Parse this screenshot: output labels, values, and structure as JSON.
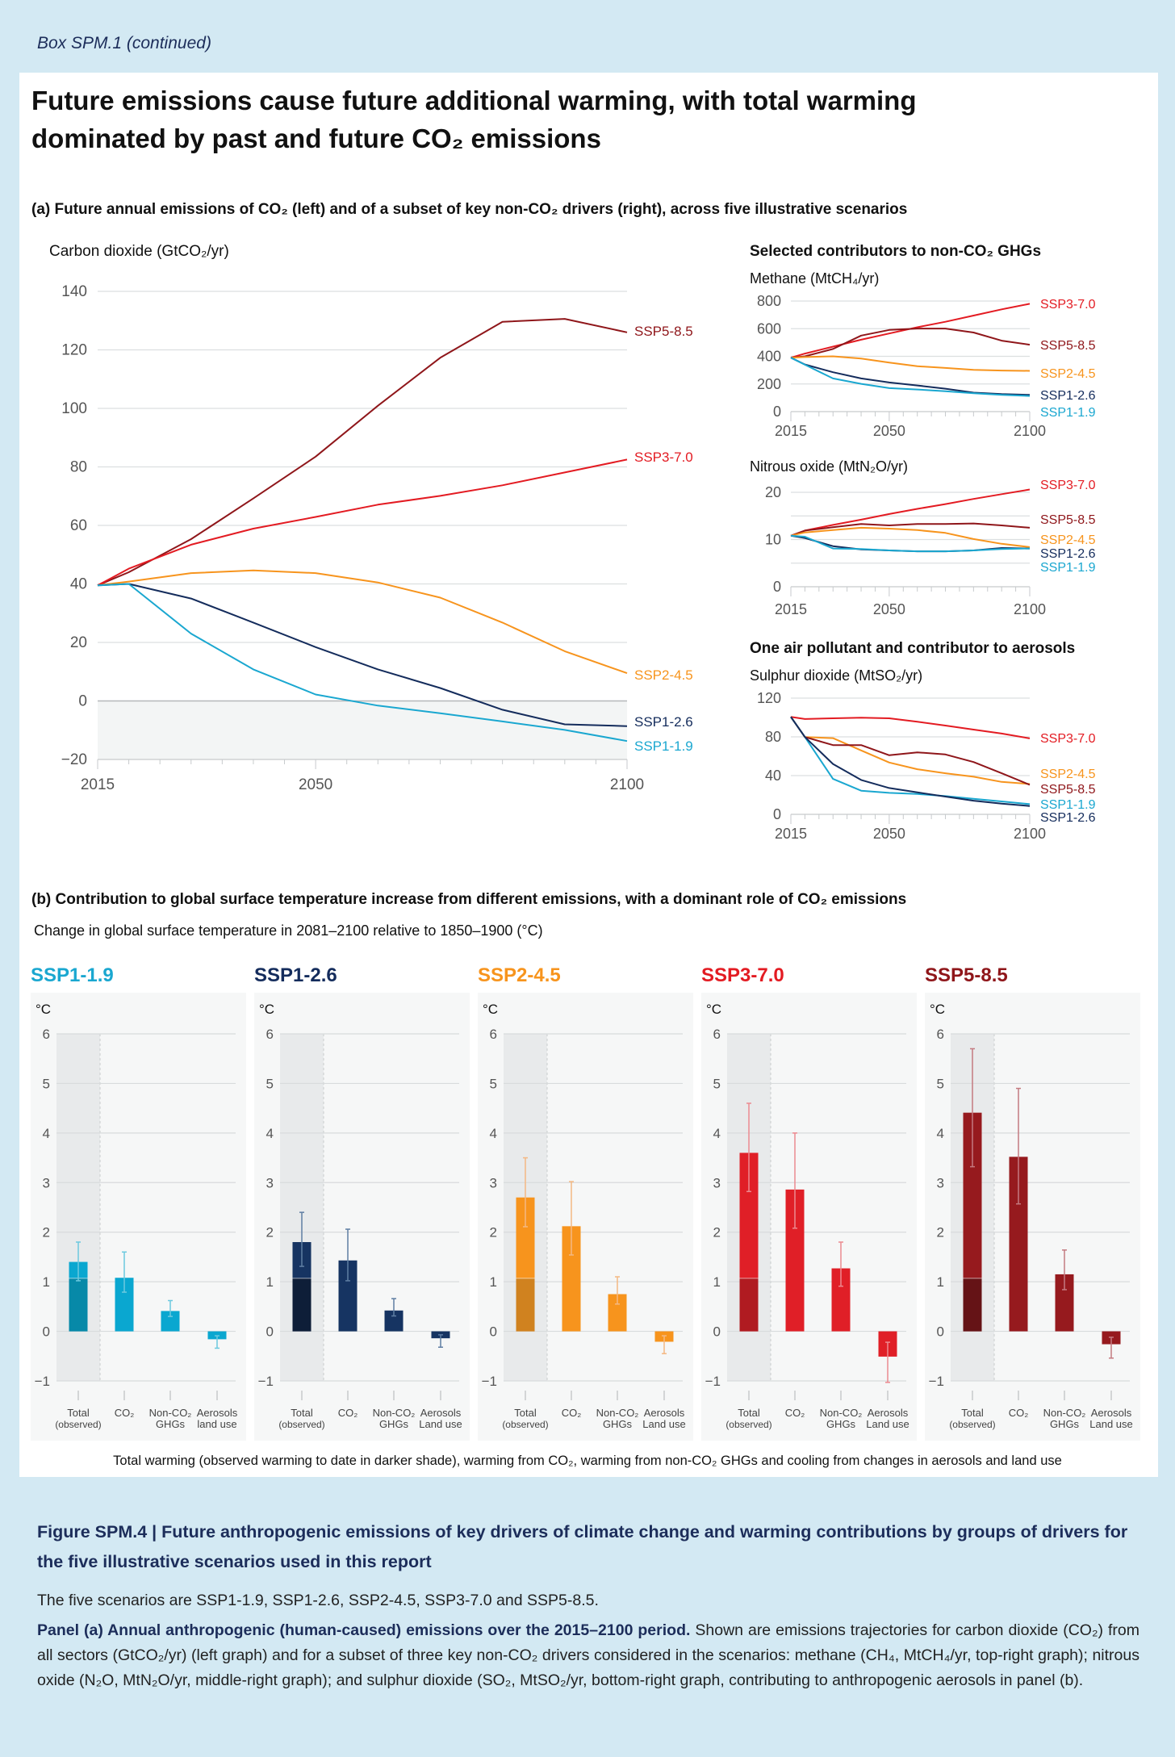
{
  "box_label": "Box SPM.1 (continued)",
  "title_line1": "Future emissions cause future additional warming, with total warming",
  "title_line2": "dominated by past and future CO₂ emissions",
  "panel_a_heading": "(a) Future annual emissions of CO₂ (left) and of a subset of key non-CO₂ drivers (right), across five illustrative scenarios",
  "non_co2_heading": "Selected contributors to non-CO₂ GHGs",
  "aerosol_heading": "One air pollutant and contributor to aerosols",
  "panel_b_heading": "(b) Contribution to global surface temperature increase from different emissions, with a dominant role of CO₂ emissions",
  "panel_b_subheading": "Change in global surface temperature in 2081–2100 relative to 1850–1900 (°C)",
  "panel_b_note": "Total warming (observed warming to date in darker shade), warming from CO₂, warming from non-CO₂ GHGs and cooling from changes in aerosols and land use",
  "caption": {
    "title": "Figure SPM.4 | Future anthropogenic emissions of key drivers of climate change and warming contributions by groups of drivers for the five illustrative scenarios used in this report",
    "p1": "The five scenarios are SSP1-1.9, SSP1-2.6, SSP2-4.5, SSP3-7.0 and SSP5-8.5.",
    "p2_bold": "Panel (a) Annual anthropogenic (human-caused) emissions over the 2015–2100 period.",
    "p2_rest": " Shown are emissions trajectories for carbon dioxide (CO₂) from all sectors (GtCO₂/yr) (left graph) and for a subset of three key non-CO₂ drivers considered in the scenarios: methane (CH₄, MtCH₄/yr, top-right graph); nitrous oxide (N₂O, MtN₂O/yr, middle-right graph); and sulphur dioxide (SO₂, MtSO₂/yr, bottom-right graph, contributing to anthropogenic aerosols in panel (b)."
  },
  "scenario_colors": {
    "SSP1-1.9": "#1aa7d0",
    "SSP1-2.6": "#142c5c",
    "SSP2-4.5": "#f7941d",
    "SSP3-7.0": "#e31b22",
    "SSP5-8.5": "#8f161a"
  },
  "chart_data": [
    {
      "id": "co2",
      "type": "line",
      "ylabel": "Carbon dioxide (GtCO₂/yr)",
      "ylim": [
        -20,
        140
      ],
      "yticks": [
        -20,
        0,
        20,
        40,
        60,
        80,
        100,
        120,
        140
      ],
      "xlim": [
        2015,
        2100
      ],
      "xticks": [
        2015,
        2050,
        2100
      ],
      "grid": true,
      "x": [
        2015,
        2020,
        2030,
        2040,
        2050,
        2060,
        2070,
        2080,
        2090,
        2100
      ],
      "series": [
        {
          "name": "SSP5-8.5",
          "values": [
            39.5,
            44,
            55.3,
            69.2,
            83.5,
            100.9,
            117.3,
            129.6,
            130.6,
            126
          ]
        },
        {
          "name": "SSP3-7.0",
          "values": [
            39.5,
            45.2,
            53.4,
            58.9,
            62.9,
            67.1,
            70.1,
            73.7,
            78.1,
            82.5
          ]
        },
        {
          "name": "SSP2-4.5",
          "values": [
            39.5,
            40.8,
            43.7,
            44.6,
            43.7,
            40.5,
            35.3,
            26.8,
            17,
            9.5
          ]
        },
        {
          "name": "SSP1-2.6",
          "values": [
            39.5,
            40,
            35,
            26.8,
            18.4,
            10.8,
            4.4,
            -3,
            -8,
            -8.6
          ]
        },
        {
          "name": "SSP1-1.9",
          "values": [
            39.5,
            40,
            23,
            10.8,
            2.2,
            -1.6,
            -4.2,
            -7,
            -9.9,
            -13.7
          ]
        }
      ]
    },
    {
      "id": "methane",
      "type": "line",
      "ylabel": "Methane (MtCH₄/yr)",
      "ylim": [
        0,
        800
      ],
      "yticks": [
        0,
        200,
        400,
        600,
        800
      ],
      "xlim": [
        2015,
        2100
      ],
      "xticks": [
        2015,
        2050,
        2100
      ],
      "grid": true,
      "x": [
        2015,
        2020,
        2030,
        2040,
        2050,
        2060,
        2070,
        2080,
        2090,
        2100
      ],
      "series": [
        {
          "name": "SSP3-7.0",
          "values": [
            390,
            420,
            470,
            520,
            565,
            610,
            650,
            695,
            740,
            780
          ]
        },
        {
          "name": "SSP5-8.5",
          "values": [
            390,
            400,
            453,
            550,
            591,
            601,
            601,
            572,
            513,
            484
          ]
        },
        {
          "name": "SSP2-4.5",
          "values": [
            390,
            395,
            400,
            384,
            355,
            328,
            316,
            302,
            297,
            295
          ]
        },
        {
          "name": "SSP1-2.6",
          "values": [
            390,
            341,
            285,
            240,
            211,
            189,
            166,
            137,
            127,
            121
          ]
        },
        {
          "name": "SSP1-1.9",
          "values": [
            390,
            339,
            240,
            201,
            170,
            160,
            148,
            133,
            121,
            113
          ]
        }
      ]
    },
    {
      "id": "n2o",
      "type": "line",
      "ylabel": "Nitrous oxide (MtN₂O/yr)",
      "ylim": [
        0,
        20
      ],
      "yticks": [
        0,
        10,
        20
      ],
      "ygrid": [
        5,
        10,
        15,
        20
      ],
      "xlim": [
        2015,
        2100
      ],
      "xticks": [
        2015,
        2050,
        2100
      ],
      "grid": true,
      "x": [
        2015,
        2020,
        2030,
        2040,
        2050,
        2060,
        2070,
        2080,
        2090,
        2100
      ],
      "series": [
        {
          "name": "SSP3-7.0",
          "values": [
            10.8,
            11.9,
            13.1,
            14.2,
            15.4,
            16.5,
            17.5,
            18.6,
            19.6,
            20.6
          ]
        },
        {
          "name": "SSP5-8.5",
          "values": [
            10.8,
            11.9,
            12.6,
            13.3,
            13.0,
            13.3,
            13.3,
            13.4,
            13.0,
            12.5
          ]
        },
        {
          "name": "SSP2-4.5",
          "values": [
            10.8,
            11.5,
            12.0,
            12.5,
            12.3,
            12.0,
            11.4,
            10.1,
            9.1,
            8.4
          ]
        },
        {
          "name": "SSP1-2.6",
          "values": [
            10.8,
            10.3,
            8.6,
            7.9,
            7.7,
            7.5,
            7.5,
            7.7,
            8.2,
            8.1
          ]
        },
        {
          "name": "SSP1-1.9",
          "values": [
            10.8,
            10.6,
            8.1,
            8.0,
            7.7,
            7.5,
            7.5,
            7.7,
            8.0,
            8.1
          ]
        }
      ]
    },
    {
      "id": "so2",
      "type": "line",
      "ylabel": "Sulphur dioxide (MtSO₂/yr)",
      "ylim": [
        0,
        120
      ],
      "yticks": [
        0,
        40,
        80,
        120
      ],
      "xlim": [
        2015,
        2100
      ],
      "xticks": [
        2015,
        2050,
        2100
      ],
      "grid": true,
      "x": [
        2015,
        2020,
        2030,
        2040,
        2050,
        2060,
        2070,
        2080,
        2090,
        2100
      ],
      "series": [
        {
          "name": "SSP3-7.0",
          "values": [
            100.6,
            98.4,
            99.2,
            99.8,
            99.2,
            95.6,
            91.7,
            87.5,
            83.4,
            78.4
          ]
        },
        {
          "name": "SSP2-4.5",
          "values": [
            100.6,
            79.8,
            78.7,
            66,
            53.5,
            46.6,
            42.4,
            38.8,
            33.5,
            31.3
          ]
        },
        {
          "name": "SSP5-8.5",
          "values": [
            100.6,
            79.8,
            71.5,
            71.5,
            61,
            64,
            61.8,
            54,
            42.4,
            30.5
          ]
        },
        {
          "name": "SSP1-1.9",
          "values": [
            100.6,
            79.8,
            36.6,
            24.4,
            22.2,
            21,
            18.8,
            16,
            13.3,
            10.5
          ]
        },
        {
          "name": "SSP1-2.6",
          "values": [
            100.6,
            79.8,
            52,
            35.5,
            27.2,
            22.7,
            18.3,
            14.1,
            11.1,
            8.6
          ]
        }
      ]
    },
    {
      "id": "bar-ssp119",
      "type": "bar",
      "title": "SSP1-1.9",
      "ylabel": "°C",
      "ylim": [
        -1,
        6
      ],
      "yticks": [
        -1,
        0,
        1,
        2,
        3,
        4,
        5,
        6
      ],
      "categories": [
        [
          "Total",
          "(observed)"
        ],
        [
          "CO₂"
        ],
        [
          "Non-CO₂",
          "GHGs"
        ],
        [
          "Aerosols",
          "land use"
        ]
      ],
      "values": [
        1.4,
        1.08,
        0.41,
        -0.16
      ],
      "observed": 1.07,
      "error_low": [
        1.02,
        0.79,
        0.3,
        -0.34
      ],
      "error_high": [
        1.8,
        1.6,
        0.62,
        -0.09
      ],
      "colors": {
        "bar": "#0aa7d0",
        "dark": "#0789a8",
        "error": "#6cc9df"
      }
    },
    {
      "id": "bar-ssp126",
      "type": "bar",
      "title": "SSP1-2.6",
      "ylabel": "°C",
      "ylim": [
        -1,
        6
      ],
      "yticks": [
        -1,
        0,
        1,
        2,
        3,
        4,
        5,
        6
      ],
      "categories": [
        [
          "Total",
          "(observed)"
        ],
        [
          "CO₂"
        ],
        [
          "Non-CO₂",
          "GHGs"
        ],
        [
          "Aerosols",
          "Land use"
        ]
      ],
      "values": [
        1.8,
        1.43,
        0.42,
        -0.14
      ],
      "observed": 1.07,
      "error_low": [
        1.31,
        1.02,
        0.31,
        -0.32
      ],
      "error_high": [
        2.4,
        2.06,
        0.66,
        -0.07
      ],
      "colors": {
        "bar": "#163462",
        "dark": "#0e1e38",
        "error": "#5f7ea3"
      }
    },
    {
      "id": "bar-ssp245",
      "type": "bar",
      "title": "SSP2-4.5",
      "ylabel": "°C",
      "ylim": [
        -1,
        6
      ],
      "yticks": [
        -1,
        0,
        1,
        2,
        3,
        4,
        5,
        6
      ],
      "categories": [
        [
          "Total",
          "(observed)"
        ],
        [
          "CO₂"
        ],
        [
          "Non-CO₂",
          "GHGs"
        ],
        [
          "Aerosols",
          "Land use"
        ]
      ],
      "values": [
        2.7,
        2.12,
        0.75,
        -0.21
      ],
      "observed": 1.07,
      "error_low": [
        2.11,
        1.54,
        0.55,
        -0.45
      ],
      "error_high": [
        3.5,
        3.02,
        1.1,
        -0.09
      ],
      "colors": {
        "bar": "#f7941d",
        "dark": "#d0821f",
        "error": "#f4b883"
      }
    },
    {
      "id": "bar-ssp370",
      "type": "bar",
      "title": "SSP3-7.0",
      "ylabel": "°C",
      "ylim": [
        -1,
        6
      ],
      "yticks": [
        -1,
        0,
        1,
        2,
        3,
        4,
        5,
        6
      ],
      "categories": [
        [
          "Total",
          "(observed)"
        ],
        [
          "CO₂"
        ],
        [
          "Non-CO₂",
          "GHGs"
        ],
        [
          "Aerosols",
          "Land use"
        ]
      ],
      "values": [
        3.6,
        2.86,
        1.27,
        -0.51
      ],
      "observed": 1.07,
      "error_low": [
        2.82,
        2.08,
        0.91,
        -1.03
      ],
      "error_high": [
        4.6,
        4.0,
        1.8,
        -0.22
      ],
      "colors": {
        "bar": "#e01f27",
        "dark": "#b01b21",
        "error": "#ec8a90"
      }
    },
    {
      "id": "bar-ssp585",
      "type": "bar",
      "title": "SSP5-8.5",
      "ylabel": "°C",
      "ylim": [
        -1,
        6
      ],
      "yticks": [
        -1,
        0,
        1,
        2,
        3,
        4,
        5,
        6
      ],
      "categories": [
        [
          "Total",
          "(observed)"
        ],
        [
          "CO₂"
        ],
        [
          "Non-CO₂",
          "GHGs"
        ],
        [
          "Aerosols",
          "Land use"
        ]
      ],
      "values": [
        4.41,
        3.52,
        1.15,
        -0.26
      ],
      "observed": 1.07,
      "error_low": [
        3.32,
        2.57,
        0.84,
        -0.54
      ],
      "error_high": [
        5.7,
        4.9,
        1.64,
        -0.12
      ],
      "colors": {
        "bar": "#961a1e",
        "dark": "#651316",
        "error": "#c47a80"
      }
    }
  ]
}
